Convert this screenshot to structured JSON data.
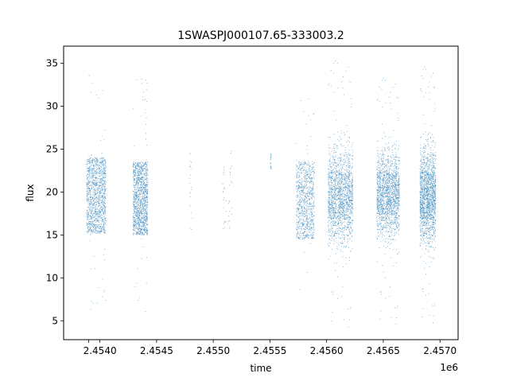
{
  "chart_data": {
    "type": "scatter",
    "title": "1SWASPJ000107.65-333003.2",
    "xlabel": "time",
    "ylabel": "flux",
    "x_offset_label": "1e6",
    "xlim": [
      2453680,
      2457160
    ],
    "ylim": [
      2.8,
      37.0
    ],
    "x_ticks": [
      2453900,
      2454000,
      2454500,
      2455000,
      2455500,
      2456000,
      2456500,
      2457000
    ],
    "x_tick_labels": [
      "",
      "2.4540",
      "2.4545",
      "2.4550",
      "2.4555",
      "2.4560",
      "2.4565",
      "2.4570"
    ],
    "y_ticks": [
      5,
      10,
      15,
      20,
      25,
      30,
      35
    ],
    "y_tick_labels": [
      "5",
      "10",
      "15",
      "20",
      "25",
      "30",
      "35"
    ],
    "grid": false,
    "legend": "none",
    "marker_color": "#1f77b4",
    "clusters": [
      {
        "x_start": 2453880,
        "x_end": 2454050,
        "density": "high",
        "core_min": 15.2,
        "core_max": 24.0,
        "outlier_min": 6.0,
        "outlier_max": 35.0
      },
      {
        "x_start": 2454290,
        "x_end": 2454420,
        "density": "high",
        "core_min": 15.0,
        "core_max": 23.5,
        "outlier_min": 6.0,
        "outlier_max": 33.5
      },
      {
        "x_start": 2454790,
        "x_end": 2454810,
        "density": "sparse",
        "core_min": 15.5,
        "core_max": 25.5,
        "outlier_min": 15.5,
        "outlier_max": 26.5
      },
      {
        "x_start": 2455080,
        "x_end": 2455110,
        "density": "sparse",
        "core_min": 15.5,
        "core_max": 23.0,
        "outlier_min": 15.5,
        "outlier_max": 25.0
      },
      {
        "x_start": 2455130,
        "x_end": 2455160,
        "density": "sparse",
        "core_min": 15.5,
        "core_max": 25.0,
        "outlier_min": 15.5,
        "outlier_max": 25.0
      },
      {
        "x_start": 2455500,
        "x_end": 2455510,
        "density": "sparse",
        "core_min": 22.5,
        "core_max": 24.5,
        "outlier_min": 22.5,
        "outlier_max": 24.5
      },
      {
        "x_start": 2455730,
        "x_end": 2455890,
        "density": "medium",
        "core_min": 14.5,
        "core_max": 23.5,
        "outlier_min": 8.0,
        "outlier_max": 31.0
      },
      {
        "x_start": 2456010,
        "x_end": 2456230,
        "density": "very-high",
        "core_min": 12.0,
        "core_max": 27.0,
        "outlier_min": 4.2,
        "outlier_max": 35.5
      },
      {
        "x_start": 2456440,
        "x_end": 2456640,
        "density": "very-high",
        "core_min": 13.0,
        "core_max": 26.5,
        "outlier_min": 4.5,
        "outlier_max": 33.5
      },
      {
        "x_start": 2456820,
        "x_end": 2456960,
        "density": "very-high",
        "core_min": 12.0,
        "core_max": 27.0,
        "outlier_min": 4.7,
        "outlier_max": 34.8
      }
    ]
  }
}
